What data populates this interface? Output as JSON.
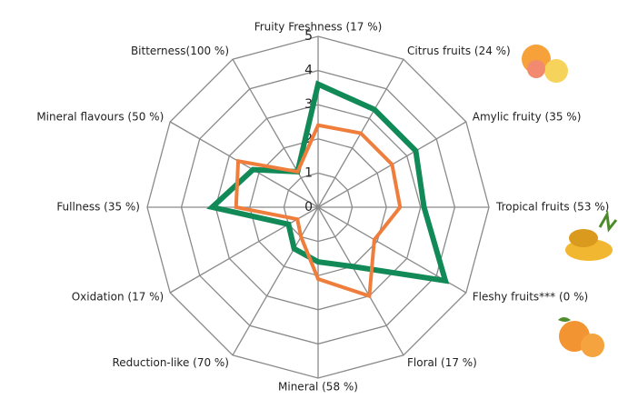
{
  "chart_data": {
    "type": "radar",
    "categories": [
      "Fruity Freshness (17 %)",
      "Citrus fruits (24 %)",
      "Amylic fruity (35 %)",
      "Tropical fruits (53 %)",
      "Fleshy fruits*** (0 %)",
      "Floral (17 %)",
      "Mineral (58 %)",
      "Reduction-like  (70 %)",
      "Oxidation (17 %)",
      "Fullness (35 %)",
      "Mineral flavours (50 %)",
      "Bitterness(100 %)"
    ],
    "series": [
      {
        "color": "#128a58",
        "values": [
          3.6,
          3.3,
          3.3,
          3.1,
          4.3,
          2.0,
          1.6,
          1.4,
          1.0,
          3.1,
          2.2,
          1.2
        ]
      },
      {
        "color": "#ef7d3c",
        "values": [
          2.4,
          2.5,
          2.5,
          2.4,
          1.9,
          3.0,
          2.1,
          1.0,
          0.7,
          2.4,
          2.7,
          1.2
        ]
      }
    ],
    "rlim": [
      0,
      5
    ],
    "rticks": [
      0,
      1,
      2,
      3,
      4,
      5
    ]
  }
}
